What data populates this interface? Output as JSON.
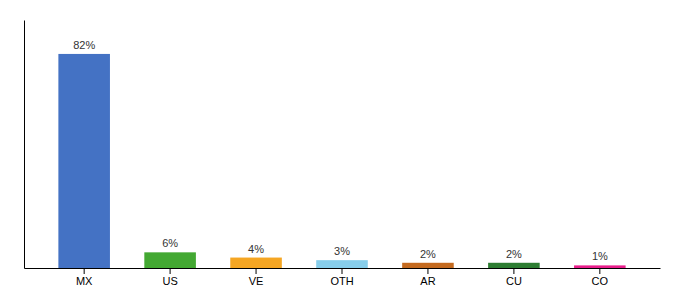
{
  "chart_data": {
    "type": "bar",
    "categories": [
      "MX",
      "US",
      "VE",
      "OTH",
      "AR",
      "CU",
      "CO"
    ],
    "values": [
      82,
      6,
      4,
      3,
      2,
      2,
      1
    ],
    "value_labels": [
      "82%",
      "6%",
      "4%",
      "3%",
      "2%",
      "2%",
      "1%"
    ],
    "colors": [
      "#4472c4",
      "#43a832",
      "#f5a623",
      "#87ceeb",
      "#c46a1f",
      "#2d7d32",
      "#e91e8c"
    ],
    "ylim": [
      0,
      95
    ],
    "data_labels": true,
    "tick_labels": "x"
  }
}
